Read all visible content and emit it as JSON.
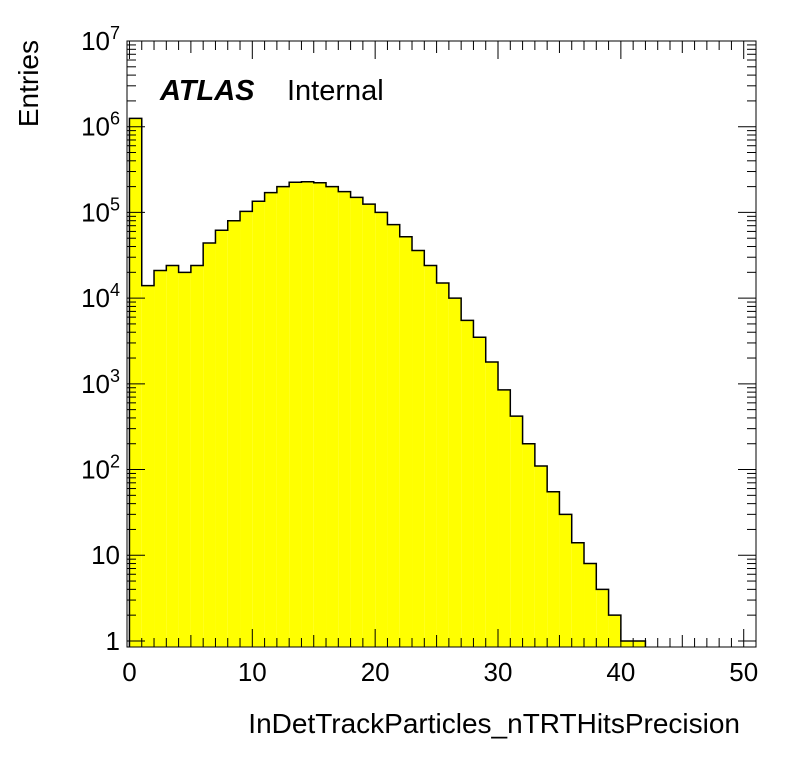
{
  "chart_data": {
    "type": "bar",
    "title": "",
    "xlabel": "InDetTrackParticles_nTRTHitsPrecision",
    "ylabel": "Entries",
    "annotation": {
      "brand": "ATLAS",
      "status": "Internal"
    },
    "xlim": [
      -0.2,
      51
    ],
    "ylim": [
      0.85,
      10000000
    ],
    "yscale": "log",
    "grid": false,
    "bar_color": "#ffff00",
    "edge_color": "#000000",
    "bin_width": 1,
    "x": [
      0,
      1,
      2,
      3,
      4,
      5,
      6,
      7,
      8,
      9,
      10,
      11,
      12,
      13,
      14,
      15,
      16,
      17,
      18,
      19,
      20,
      21,
      22,
      23,
      24,
      25,
      26,
      27,
      28,
      29,
      30,
      31,
      32,
      33,
      34,
      35,
      36,
      37,
      38,
      39,
      40,
      41,
      42,
      43,
      44,
      45,
      46,
      47,
      48,
      49
    ],
    "values": [
      1250000,
      14000,
      21000,
      24000,
      20000,
      24000,
      44000,
      62000,
      80000,
      103000,
      135000,
      170000,
      200000,
      225000,
      228000,
      222000,
      200000,
      175000,
      150000,
      125000,
      100000,
      72000,
      52000,
      36000,
      24000,
      15000,
      10000,
      5500,
      3500,
      1800,
      850,
      420,
      200,
      110,
      55,
      30,
      14,
      8,
      4,
      2,
      1,
      1,
      0,
      0,
      0,
      0,
      0,
      0,
      0,
      0
    ]
  },
  "x_ticks": [
    "0",
    "10",
    "20",
    "30",
    "40",
    "50"
  ],
  "y_ticks": [
    "1",
    "10",
    "10^2",
    "10^3",
    "10^4",
    "10^5",
    "10^6",
    "10^7"
  ]
}
